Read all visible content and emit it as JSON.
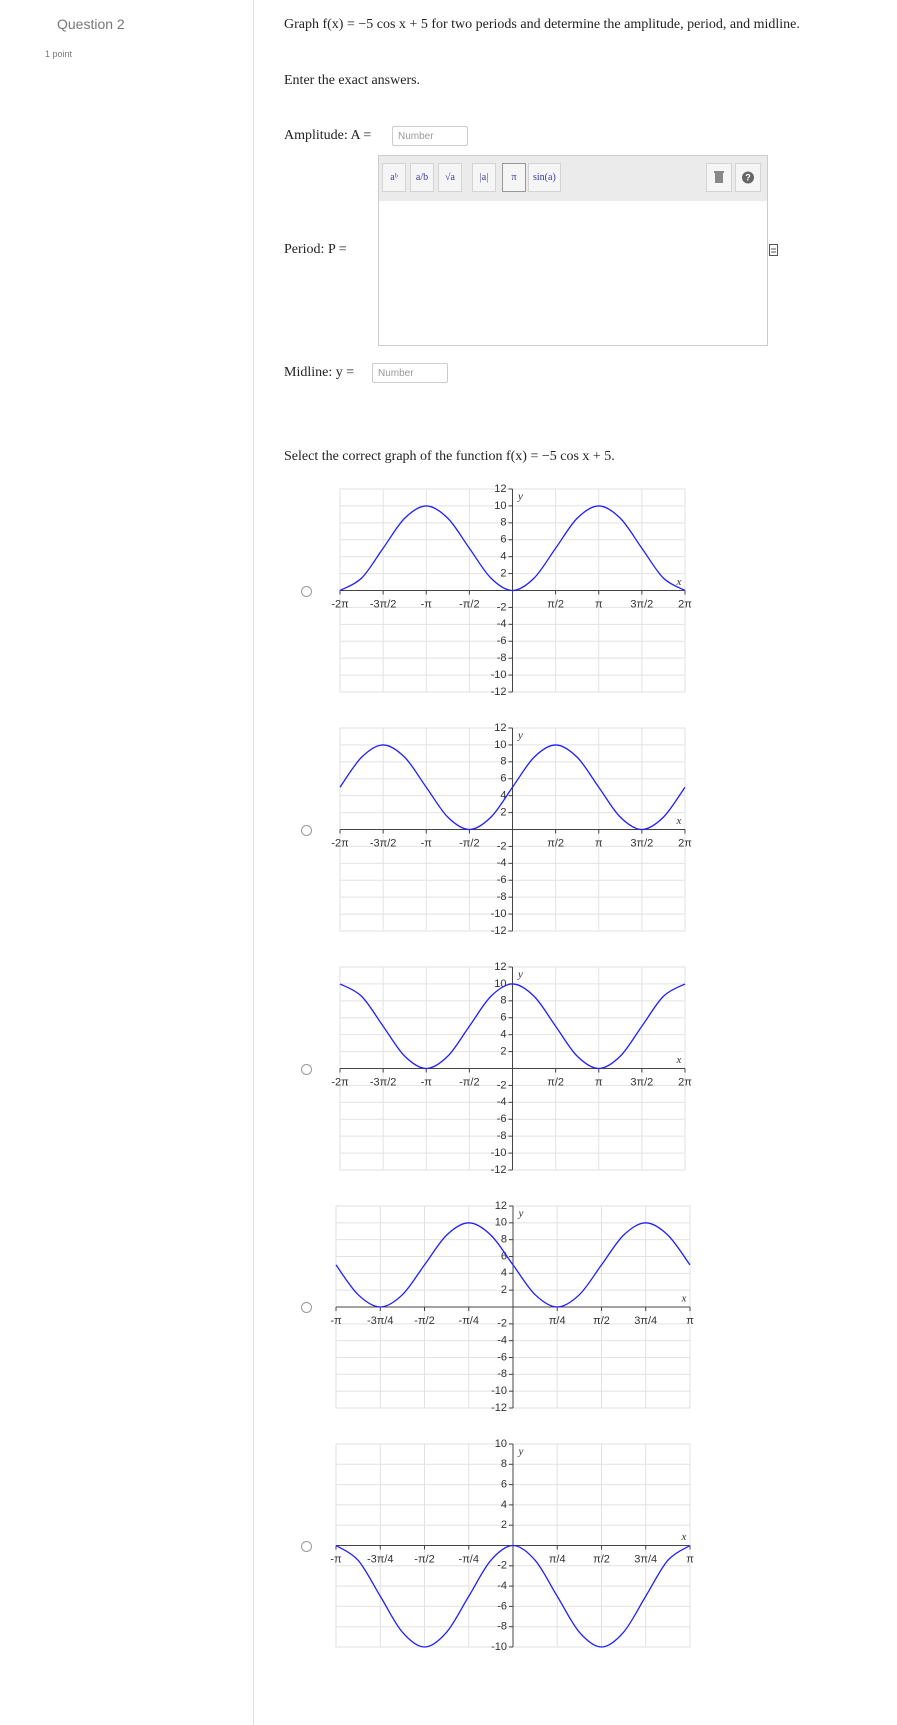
{
  "question": {
    "label": "Question 2",
    "points": "1 point"
  },
  "prompt": "Graph f(x) = −5 cos x + 5 for two periods and determine the amplitude, period, and midline.",
  "instruction": "Enter the exact answers.",
  "fields": [
    {
      "label": "Amplitude: A =",
      "placeholder": "Number"
    },
    {
      "label": "Period: P ="
    },
    {
      "label": "Midline: y =",
      "placeholder": "Number"
    }
  ],
  "toolbar": [
    "aᵇ",
    "a/b",
    "√a",
    "|a|",
    "π",
    "sin(a)"
  ],
  "select_prompt": "Select the correct graph of the function f(x) = −5 cos x + 5.",
  "graphs": [
    {
      "type": "line",
      "color": "#1f1fff",
      "xlabel": "x",
      "ylabel": "y",
      "xlim": [
        -6.283,
        6.283
      ],
      "ylim": [
        -12,
        12
      ],
      "xticks": [
        {
          "value": -6.283,
          "label": "-2π"
        },
        {
          "value": -4.712,
          "label": "-3π/2"
        },
        {
          "value": -3.142,
          "label": "-π"
        },
        {
          "value": -1.571,
          "label": "-π/2"
        },
        {
          "value": 1.571,
          "label": "π/2"
        },
        {
          "value": 3.142,
          "label": "π"
        },
        {
          "value": 4.712,
          "label": "3π/2"
        },
        {
          "value": 6.283,
          "label": "2π"
        }
      ],
      "yticks": [
        12,
        10,
        8,
        6,
        4,
        2,
        -2,
        -4,
        -6,
        -8,
        -10,
        -12
      ],
      "x": [
        -6.283,
        -5.498,
        -4.712,
        -3.927,
        -3.142,
        -2.356,
        -1.571,
        -0.785,
        0,
        0.785,
        1.571,
        2.356,
        3.142,
        3.927,
        4.712,
        5.498,
        6.283
      ],
      "values": [
        0,
        1.46,
        5,
        8.54,
        10,
        8.54,
        5,
        1.46,
        0,
        1.46,
        5,
        8.54,
        10,
        8.54,
        5,
        1.46,
        0
      ]
    },
    {
      "type": "line",
      "color": "#1f1fff",
      "xlabel": "x",
      "ylabel": "y",
      "xlim": [
        -6.283,
        6.283
      ],
      "ylim": [
        -12,
        12
      ],
      "xticks": [
        {
          "value": -6.283,
          "label": "-2π"
        },
        {
          "value": -4.712,
          "label": "-3π/2"
        },
        {
          "value": -3.142,
          "label": "-π"
        },
        {
          "value": -1.571,
          "label": "-π/2"
        },
        {
          "value": 1.571,
          "label": "π/2"
        },
        {
          "value": 3.142,
          "label": "π"
        },
        {
          "value": 4.712,
          "label": "3π/2"
        },
        {
          "value": 6.283,
          "label": "2π"
        }
      ],
      "yticks": [
        12,
        10,
        8,
        6,
        4,
        2,
        -2,
        -4,
        -6,
        -8,
        -10,
        -12
      ],
      "x": [
        -6.283,
        -5.498,
        -4.712,
        -3.927,
        -3.142,
        -2.356,
        -1.571,
        -0.785,
        0,
        0.785,
        1.571,
        2.356,
        3.142,
        3.927,
        4.712,
        5.498,
        6.283
      ],
      "values": [
        5,
        8.54,
        10,
        8.54,
        5,
        1.46,
        0,
        1.46,
        5,
        8.54,
        10,
        8.54,
        5,
        1.46,
        0,
        1.46,
        5
      ]
    },
    {
      "type": "line",
      "color": "#1f1fff",
      "xlabel": "x",
      "ylabel": "y",
      "xlim": [
        -6.283,
        6.283
      ],
      "ylim": [
        -12,
        12
      ],
      "xticks": [
        {
          "value": -6.283,
          "label": "-2π"
        },
        {
          "value": -4.712,
          "label": "-3π/2"
        },
        {
          "value": -3.142,
          "label": "-π"
        },
        {
          "value": -1.571,
          "label": "-π/2"
        },
        {
          "value": 1.571,
          "label": "π/2"
        },
        {
          "value": 3.142,
          "label": "π"
        },
        {
          "value": 4.712,
          "label": "3π/2"
        },
        {
          "value": 6.283,
          "label": "2π"
        }
      ],
      "yticks": [
        12,
        10,
        8,
        6,
        4,
        2,
        -2,
        -4,
        -6,
        -8,
        -10,
        -12
      ],
      "x": [
        -6.283,
        -5.498,
        -4.712,
        -3.927,
        -3.142,
        -2.356,
        -1.571,
        -0.785,
        0,
        0.785,
        1.571,
        2.356,
        3.142,
        3.927,
        4.712,
        5.498,
        6.283
      ],
      "values": [
        10,
        8.54,
        5,
        1.46,
        0,
        1.46,
        5,
        8.54,
        10,
        8.54,
        5,
        1.46,
        0,
        1.46,
        5,
        8.54,
        10
      ]
    },
    {
      "type": "line",
      "color": "#1f1fff",
      "xlabel": "x",
      "ylabel": "y",
      "xlim": [
        -3.142,
        3.142
      ],
      "ylim": [
        -12,
        12
      ],
      "xticks": [
        {
          "value": -3.142,
          "label": "-π"
        },
        {
          "value": -2.356,
          "label": "-3π/4"
        },
        {
          "value": -1.571,
          "label": "-π/2"
        },
        {
          "value": -0.785,
          "label": "-π/4"
        },
        {
          "value": 0.785,
          "label": "π/4"
        },
        {
          "value": 1.571,
          "label": "π/2"
        },
        {
          "value": 2.356,
          "label": "3π/4"
        },
        {
          "value": 3.142,
          "label": "π"
        }
      ],
      "yticks": [
        12,
        10,
        8,
        6,
        4,
        2,
        -2,
        -4,
        -6,
        -8,
        -10,
        -12
      ],
      "x": [
        -3.142,
        -2.749,
        -2.356,
        -1.963,
        -1.571,
        -1.178,
        -0.785,
        -0.393,
        0,
        0.393,
        0.785,
        1.178,
        1.571,
        1.963,
        2.356,
        2.749,
        3.142
      ],
      "values": [
        5,
        1.46,
        0,
        1.46,
        5,
        8.54,
        10,
        8.54,
        5,
        1.46,
        0,
        1.46,
        5,
        8.54,
        10,
        8.54,
        5
      ]
    },
    {
      "type": "line",
      "color": "#1f1fff",
      "xlabel": "x",
      "ylabel": "y",
      "xlim": [
        -3.142,
        3.142
      ],
      "ylim": [
        -10,
        10
      ],
      "xticks": [
        {
          "value": -3.142,
          "label": "-π"
        },
        {
          "value": -2.356,
          "label": "-3π/4"
        },
        {
          "value": -1.571,
          "label": "-π/2"
        },
        {
          "value": -0.785,
          "label": "-π/4"
        },
        {
          "value": 0.785,
          "label": "π/4"
        },
        {
          "value": 1.571,
          "label": "π/2"
        },
        {
          "value": 2.356,
          "label": "3π/4"
        },
        {
          "value": 3.142,
          "label": "π"
        }
      ],
      "yticks": [
        10,
        8,
        6,
        4,
        2,
        -2,
        -4,
        -6,
        -8,
        -10
      ],
      "x": [
        -3.142,
        -2.749,
        -2.356,
        -1.963,
        -1.571,
        -1.178,
        -0.785,
        -0.393,
        0,
        0.393,
        0.785,
        1.178,
        1.571,
        1.963,
        2.356,
        2.749,
        3.142
      ],
      "values": [
        0,
        -1.46,
        -5,
        -8.54,
        -10,
        -8.54,
        -5,
        -1.46,
        0,
        -1.46,
        -5,
        -8.54,
        -10,
        -8.54,
        -5,
        -1.46,
        0
      ]
    }
  ]
}
